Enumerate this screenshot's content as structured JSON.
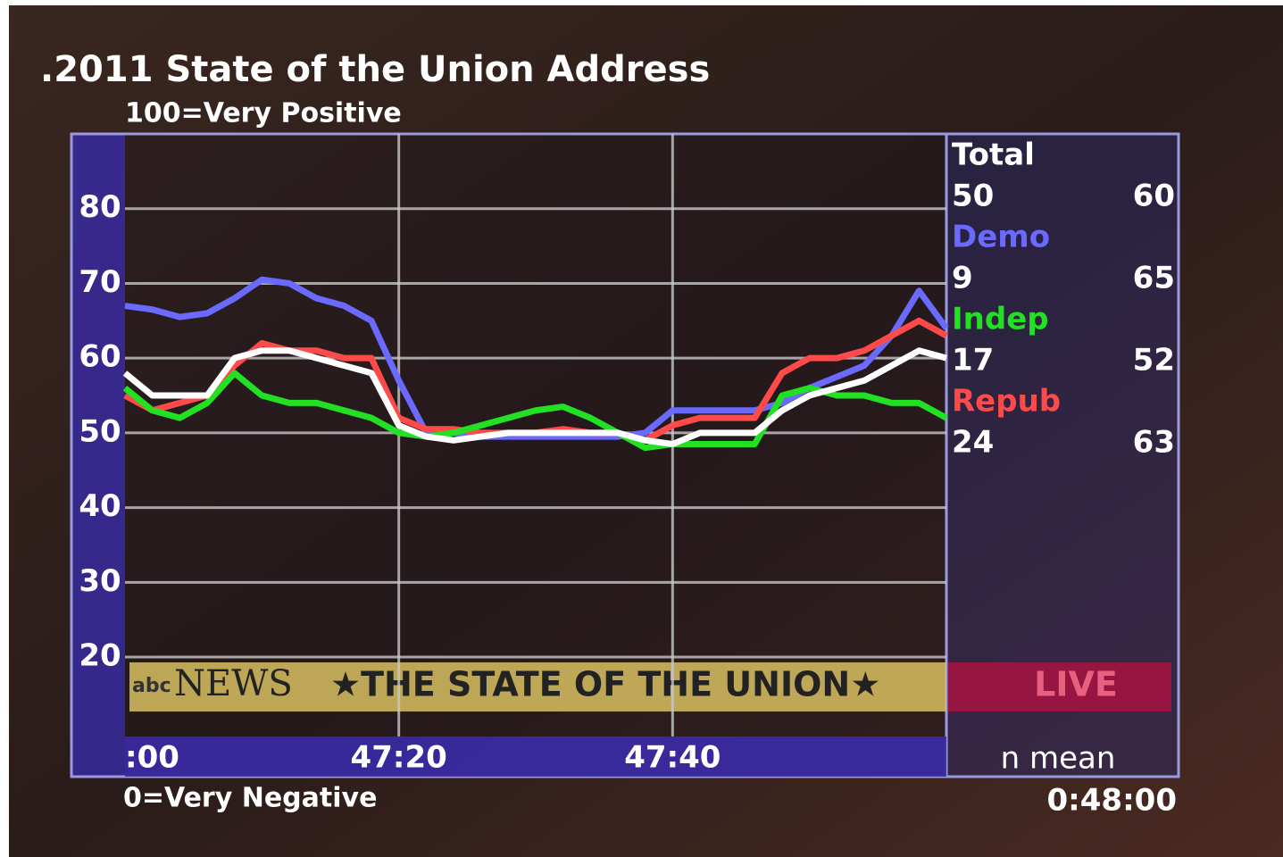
{
  "chart_data": {
    "type": "line",
    "title": ".2011 State of the Union Address",
    "subtitle": "100=Very Positive",
    "bottom_note": "0=Very Negative",
    "clock": "0:48:00",
    "panel_header": "n mean",
    "banner": {
      "network": "NEWS",
      "logo": "abc",
      "show": "★THE STATE OF THE UNION★",
      "live": "LIVE"
    },
    "x": [
      0,
      2,
      4,
      6,
      8,
      10,
      12,
      14,
      16,
      18,
      20,
      22,
      24,
      26,
      28,
      30,
      32,
      34,
      36,
      38,
      40,
      42,
      44,
      46,
      48,
      50,
      52,
      54,
      56,
      58,
      60
    ],
    "xlim": [
      0,
      60
    ],
    "xticks": [
      {
        "value": 0,
        "label": ":00"
      },
      {
        "value": 20,
        "label": "47:20"
      },
      {
        "value": 40,
        "label": "47:40"
      }
    ],
    "ylim": [
      4,
      90
    ],
    "yticks": [
      20,
      30,
      40,
      50,
      60,
      70,
      80
    ],
    "grid": true,
    "series": [
      {
        "name": "Demo",
        "color": "#6a6aff",
        "n": 9,
        "mean": 65,
        "values": [
          67,
          66.5,
          65.5,
          66,
          68,
          70.5,
          70,
          68,
          67,
          65,
          57,
          50,
          50,
          49.5,
          49.5,
          49.5,
          49.5,
          49.5,
          49.5,
          50,
          53,
          53,
          53,
          53,
          54,
          56,
          57.5,
          59,
          63,
          69,
          64
        ]
      },
      {
        "name": "Repub",
        "color": "#ff4a4a",
        "n": 24,
        "mean": 63,
        "values": [
          55,
          53,
          54,
          55,
          59,
          62,
          61,
          61,
          60,
          60,
          52,
          50.5,
          50.5,
          50,
          50,
          50,
          50.5,
          50,
          50,
          49,
          51,
          52,
          52,
          52,
          58,
          60,
          60,
          61,
          63,
          65,
          63
        ]
      },
      {
        "name": "Indep",
        "color": "#22e022",
        "n": 17,
        "mean": 52,
        "values": [
          56,
          53,
          52,
          54,
          58,
          55,
          54,
          54,
          53,
          52,
          50,
          49.5,
          50,
          51,
          52,
          53,
          53.5,
          52,
          50,
          48,
          48.5,
          48.5,
          48.5,
          48.5,
          55,
          56,
          55,
          55,
          54,
          54,
          52
        ]
      },
      {
        "name": "Total",
        "color": "#ffffff",
        "n": 50,
        "mean": 60,
        "values": [
          58,
          55,
          55,
          55,
          60,
          61,
          61,
          60,
          59,
          58,
          51,
          49.5,
          49,
          49.5,
          50,
          50,
          50,
          50,
          50,
          49,
          48.5,
          50,
          50,
          50,
          53,
          55,
          56,
          57,
          59,
          61,
          60
        ]
      }
    ],
    "panel_order": [
      3,
      0,
      2,
      1
    ]
  }
}
